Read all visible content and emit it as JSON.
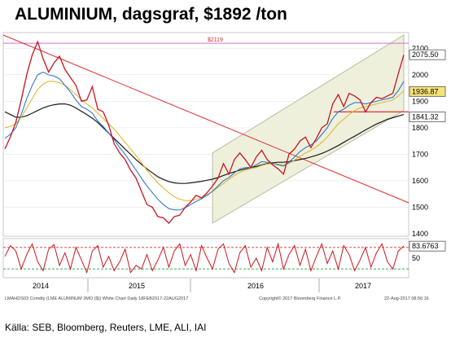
{
  "header": {
    "title": "ALUMINIUM, dagsgraf, $1892 /ton"
  },
  "footer": {
    "source": "Källa: SEB, Bloomberg, Reuters, LME, ALI, IAI"
  },
  "chart_data": {
    "type": "line",
    "price_panel": {
      "ylim": [
        1400,
        2150
      ],
      "yticks": [
        "1400",
        "1500",
        "1600",
        "1700",
        "1800",
        "1900",
        "2000",
        "2100"
      ],
      "resistance_label": "$2119",
      "resistance_value": 2119,
      "last_price_label": "2075.50",
      "ma_label_1": "1936.87",
      "ma_label_2": "1841.32",
      "series": [
        {
          "values": [
            1720,
            1765,
            1820,
            1905,
            2000,
            2075,
            2125,
            2060,
            2010,
            2045,
            2070,
            2020,
            1990,
            1960,
            1900,
            1905,
            1955,
            1870,
            1860,
            1810,
            1740,
            1705,
            1680,
            1640,
            1610,
            1560,
            1510,
            1500,
            1465,
            1460,
            1440,
            1465,
            1470,
            1500,
            1520,
            1545,
            1535,
            1555,
            1580,
            1610,
            1665,
            1625,
            1680,
            1705,
            1680,
            1650,
            1690,
            1715,
            1680,
            1660,
            1645,
            1625,
            1700,
            1720,
            1750,
            1765,
            1725,
            1760,
            1800,
            1815,
            1890,
            1925,
            1880,
            1930,
            1920,
            1905,
            1860,
            1895,
            1915,
            1910,
            1920,
            1930,
            2005,
            2075
          ]
        },
        {
          "values": [
            1760,
            1775,
            1800,
            1850,
            1910,
            1960,
            2000,
            2010,
            2000,
            1995,
            1985,
            1960,
            1935,
            1905,
            1880,
            1870,
            1855,
            1825,
            1805,
            1780,
            1755,
            1725,
            1700,
            1670,
            1640,
            1610,
            1580,
            1555,
            1530,
            1510,
            1495,
            1490,
            1490,
            1498,
            1510,
            1522,
            1532,
            1545,
            1560,
            1580,
            1600,
            1612,
            1630,
            1645,
            1650,
            1650,
            1660,
            1672,
            1670,
            1665,
            1660,
            1655,
            1670,
            1690,
            1710,
            1725,
            1735,
            1750,
            1775,
            1800,
            1835,
            1860,
            1870,
            1885,
            1895,
            1895,
            1890,
            1895,
            1900,
            1905,
            1910,
            1915,
            1940,
            1975
          ]
        },
        {
          "values": [
            1800,
            1805,
            1815,
            1840,
            1875,
            1910,
            1945,
            1965,
            1975,
            1975,
            1970,
            1960,
            1945,
            1925,
            1905,
            1890,
            1875,
            1855,
            1835,
            1815,
            1795,
            1770,
            1745,
            1720,
            1695,
            1668,
            1640,
            1615,
            1592,
            1572,
            1555,
            1540,
            1530,
            1525,
            1525,
            1530,
            1537,
            1548,
            1560,
            1575,
            1590,
            1605,
            1620,
            1632,
            1640,
            1645,
            1650,
            1658,
            1663,
            1665,
            1663,
            1660,
            1665,
            1678,
            1692,
            1705,
            1715,
            1728,
            1745,
            1765,
            1790,
            1815,
            1832,
            1850,
            1865,
            1875,
            1880,
            1885,
            1890,
            1895,
            1900,
            1905,
            1920,
            1940
          ]
        },
        {
          "values": [
            1860,
            1850,
            1840,
            1840,
            1845,
            1855,
            1865,
            1875,
            1882,
            1887,
            1890,
            1890,
            1885,
            1875,
            1862,
            1850,
            1836,
            1820,
            1800,
            1780,
            1760,
            1740,
            1720,
            1700,
            1680,
            1662,
            1645,
            1630,
            1615,
            1605,
            1597,
            1592,
            1590,
            1590,
            1592,
            1595,
            1598,
            1602,
            1606,
            1612,
            1620,
            1627,
            1634,
            1640,
            1645,
            1650,
            1654,
            1660,
            1665,
            1668,
            1670,
            1670,
            1672,
            1676,
            1680,
            1684,
            1690,
            1696,
            1703,
            1712,
            1722,
            1733,
            1745,
            1757,
            1768,
            1780,
            1792,
            1803,
            1814,
            1823,
            1832,
            1838,
            1844,
            1850
          ]
        }
      ]
    },
    "stochastic_panel": {
      "ylim": [
        0,
        100
      ],
      "yticks": [
        "50"
      ],
      "overbought": 80,
      "oversold": 20,
      "value_label": "83.6763",
      "values": [
        55,
        85,
        70,
        20,
        60,
        90,
        40,
        15,
        75,
        88,
        30,
        65,
        20,
        80,
        45,
        10,
        70,
        85,
        25,
        55,
        15,
        40,
        75,
        10,
        30,
        20,
        60,
        15,
        45,
        80,
        25,
        70,
        90,
        30,
        60,
        15,
        85,
        50,
        20,
        75,
        90,
        35,
        10,
        65,
        85,
        25,
        50,
        15,
        80,
        40,
        90,
        20,
        60,
        85,
        30,
        75,
        15,
        55,
        90,
        35,
        70,
        20,
        85,
        60,
        15,
        45,
        80,
        25,
        65,
        90,
        40,
        20,
        70,
        84
      ]
    },
    "xlabels": [
      "2014",
      "2015",
      "2016",
      "2017"
    ],
    "watermark": "LMAHDS03 Comdty (LME ALUMINUM 3MO ($)) White Chart  Daily 18FEB2017-22AUG2017",
    "copyright": "Copyright© 2017 Bloomberg Finance L.P.",
    "timestamp": "22-Aug-2017 08:56:16"
  },
  "colors": {
    "price": "#c8141e",
    "ma_fast": "#1e6ec8",
    "ma_mid": "#e0b020",
    "ma_slow": "#1a1a1a",
    "ma_green": "#58b030",
    "trend_line": "#e03030",
    "resistance": "#d070d0",
    "channel_fill": "#eef0dc",
    "stoch": "#d0141e",
    "overbought": "#e03030",
    "oversold": "#20a040"
  }
}
